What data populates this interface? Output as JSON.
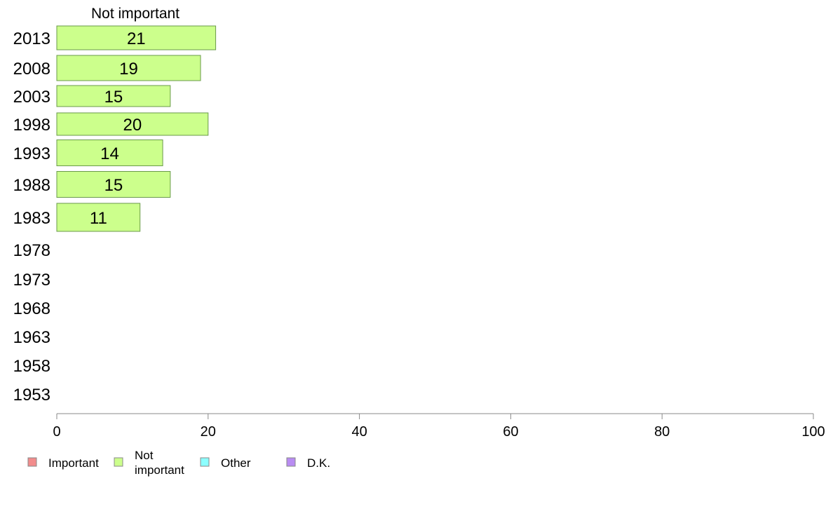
{
  "chart_data": {
    "type": "bar",
    "orientation": "horizontal",
    "stacked": true,
    "categories": [
      "2013",
      "2008",
      "2003",
      "1998",
      "1993",
      "1988",
      "1983",
      "1978",
      "1973",
      "1968",
      "1963",
      "1958",
      "1953"
    ],
    "series": [
      {
        "name": "Important",
        "color": "#f28c8c",
        "values": [
          null,
          null,
          null,
          null,
          null,
          null,
          null,
          null,
          null,
          null,
          null,
          null,
          null
        ]
      },
      {
        "name": "Not important",
        "color": "#ccff8c",
        "values": [
          21,
          19,
          15,
          20,
          14,
          15,
          11,
          null,
          null,
          null,
          null,
          null,
          null
        ]
      },
      {
        "name": "Other",
        "color": "#8cffff",
        "values": [
          null,
          null,
          null,
          null,
          null,
          null,
          null,
          null,
          null,
          null,
          null,
          null,
          null
        ]
      },
      {
        "name": "D.K.",
        "color": "#b98cf2",
        "values": [
          null,
          null,
          null,
          null,
          null,
          null,
          null,
          null,
          null,
          null,
          null,
          null,
          null
        ]
      }
    ],
    "series_header": "Not important",
    "xlim": [
      0,
      100
    ],
    "xticks": [
      0,
      20,
      40,
      60,
      80,
      100
    ],
    "legend": [
      {
        "label": "Important",
        "color": "#f28c8c"
      },
      {
        "label": "Not important",
        "lines": [
          "Not",
          "important"
        ],
        "color": "#ccff8c"
      },
      {
        "label": "Other",
        "color": "#8cffff"
      },
      {
        "label": "D.K.",
        "color": "#b98cf2"
      }
    ],
    "legend_position": "bottom-left",
    "grid": false
  }
}
